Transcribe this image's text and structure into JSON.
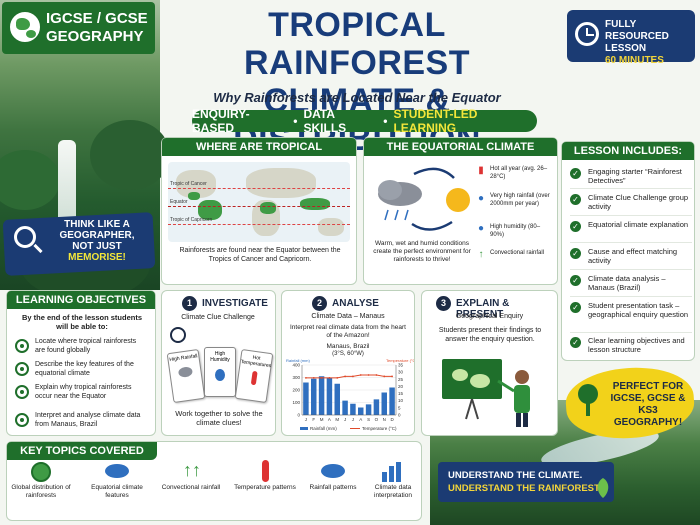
{
  "badge": {
    "line1": "IGCSE / GCSE",
    "line2": "GEOGRAPHY"
  },
  "header": {
    "title_line1": "TROPICAL RAINFOREST",
    "title_line2": "CLIMATE & DISTRIBUTION",
    "subtitle": "Why Rainforests are Located Near the Equator",
    "strip": {
      "item1": "ENQUIRY-BASED",
      "sep": "•",
      "item2": "DATA SKILLS",
      "item3": "STUDENT-LED LEARNING"
    }
  },
  "lesson_badge": {
    "line1": "FULLY RESOURCED",
    "line2": "LESSON",
    "time": "60 MINUTES"
  },
  "where": {
    "heading": "WHERE ARE TROPICAL RAINFORESTS FOUND?",
    "tropic_cancer": "Tropic of Cancer",
    "equator": "Equator",
    "tropic_capricorn": "Tropic of Capricorn",
    "caption": "Rainforests are found near the Equator between the Tropics of Cancer and Capricorn."
  },
  "equatorial": {
    "heading": "THE EQUATORIAL CLIMATE",
    "caption": "Warm, wet and humid conditions create the perfect environment for rainforests to thrive!",
    "items": [
      {
        "icon": "thermometer-icon",
        "text": "Hot all year (avg. 26–28°C)"
      },
      {
        "icon": "raindrop-icon",
        "text": "Very high rainfall (over 2000mm per year)"
      },
      {
        "icon": "humidity-icon",
        "text": "High humidity (80–90%)"
      },
      {
        "icon": "convection-icon",
        "text": "Convectional rainfall"
      }
    ]
  },
  "includes": {
    "heading": "LESSON INCLUDES:",
    "items": [
      "Engaging starter “Rainforest Detectives”",
      "Climate Clue Challenge group activity",
      "Equatorial climate explanation",
      "Cause and effect matching activity",
      "Climate data analysis – Manaus (Brazil)",
      "Student presentation task – geographical enquiry question",
      "Clear learning objectives and lesson structure"
    ]
  },
  "think": {
    "line1": "THINK LIKE A",
    "line2": "GEOGRAPHER,",
    "line3": "NOT JUST",
    "line4": "MEMORISE!"
  },
  "objectives": {
    "heading": "LEARNING OBJECTIVES",
    "intro": "By the end of the lesson students will be able to:",
    "items": [
      "Locate where tropical rainforests are found globally",
      "Describe the key features of the equatorial climate",
      "Explain why tropical rainforests occur near the Equator",
      "Interpret and analyse climate data from Manaus, Brazil"
    ]
  },
  "steps": {
    "investigate": {
      "num": "1",
      "title": "INVESTIGATE",
      "sub": "Climate Clue Challenge",
      "cards": [
        "High Rainfall",
        "High Humidity",
        "Hot Temperatures"
      ],
      "caption": "Work together to solve the climate clues!"
    },
    "analyse": {
      "num": "2",
      "title": "ANALYSE",
      "sub": "Climate Data – Manaus",
      "desc": "Interpret real climate data from the heart of the Amazon!",
      "place": "Manaus, Brazil",
      "coords": "(3°S, 60°W)"
    },
    "explain": {
      "num": "3",
      "title": "EXPLAIN & PRESENT",
      "sub": "Geographical Enquiry",
      "desc": "Students present their findings to answer the enquiry question."
    }
  },
  "chart_data": {
    "type": "bar",
    "title": "",
    "categories": [
      "J",
      "F",
      "M",
      "A",
      "M",
      "J",
      "J",
      "A",
      "S",
      "O",
      "N",
      "D"
    ],
    "series": [
      {
        "name": "Rainfall (mm)",
        "type": "bar",
        "axis": "left",
        "values": [
          260,
          290,
          310,
          300,
          250,
          115,
          90,
          60,
          85,
          125,
          180,
          220
        ]
      },
      {
        "name": "Temperature (°C)",
        "type": "line",
        "axis": "right",
        "values": [
          26,
          26,
          26,
          26,
          26,
          27,
          27,
          28,
          28,
          28,
          27,
          27
        ]
      }
    ],
    "ylabel": "Rainfall (mm)",
    "y2label": "Temperature (°C)",
    "ylim": [
      0,
      400
    ],
    "y2lim": [
      0,
      35
    ],
    "yticks": [
      0,
      100,
      200,
      300,
      400
    ],
    "y2ticks": [
      0,
      5,
      10,
      15,
      20,
      25,
      30,
      35
    ],
    "legend": [
      "Rainfall (mm)",
      "Temperature (°C)"
    ],
    "colors": {
      "bar": "#2f6fbf",
      "line": "#e04a2a"
    }
  },
  "perfect": {
    "line1": "PERFECT FOR",
    "line2": "IGCSE, GCSE &",
    "line3": "KS3 GEOGRAPHY!"
  },
  "topics": {
    "heading": "KEY TOPICS COVERED",
    "items": [
      {
        "icon": "globe-icon",
        "label": "Global distribution of rainforests"
      },
      {
        "icon": "rain-cloud-icon",
        "label": "Equatorial climate features"
      },
      {
        "icon": "convection-arrows-icon",
        "label": "Convectional rainfall"
      },
      {
        "icon": "thermometer-icon",
        "label": "Temperature patterns"
      },
      {
        "icon": "rain-cloud-icon",
        "label": "Rainfall patterns"
      },
      {
        "icon": "bar-chart-icon",
        "label": "Climate data interpretation"
      }
    ]
  },
  "understand": {
    "line1": "UNDERSTAND THE CLIMATE.",
    "line2": "UNDERSTAND THE RAINFOREST."
  }
}
